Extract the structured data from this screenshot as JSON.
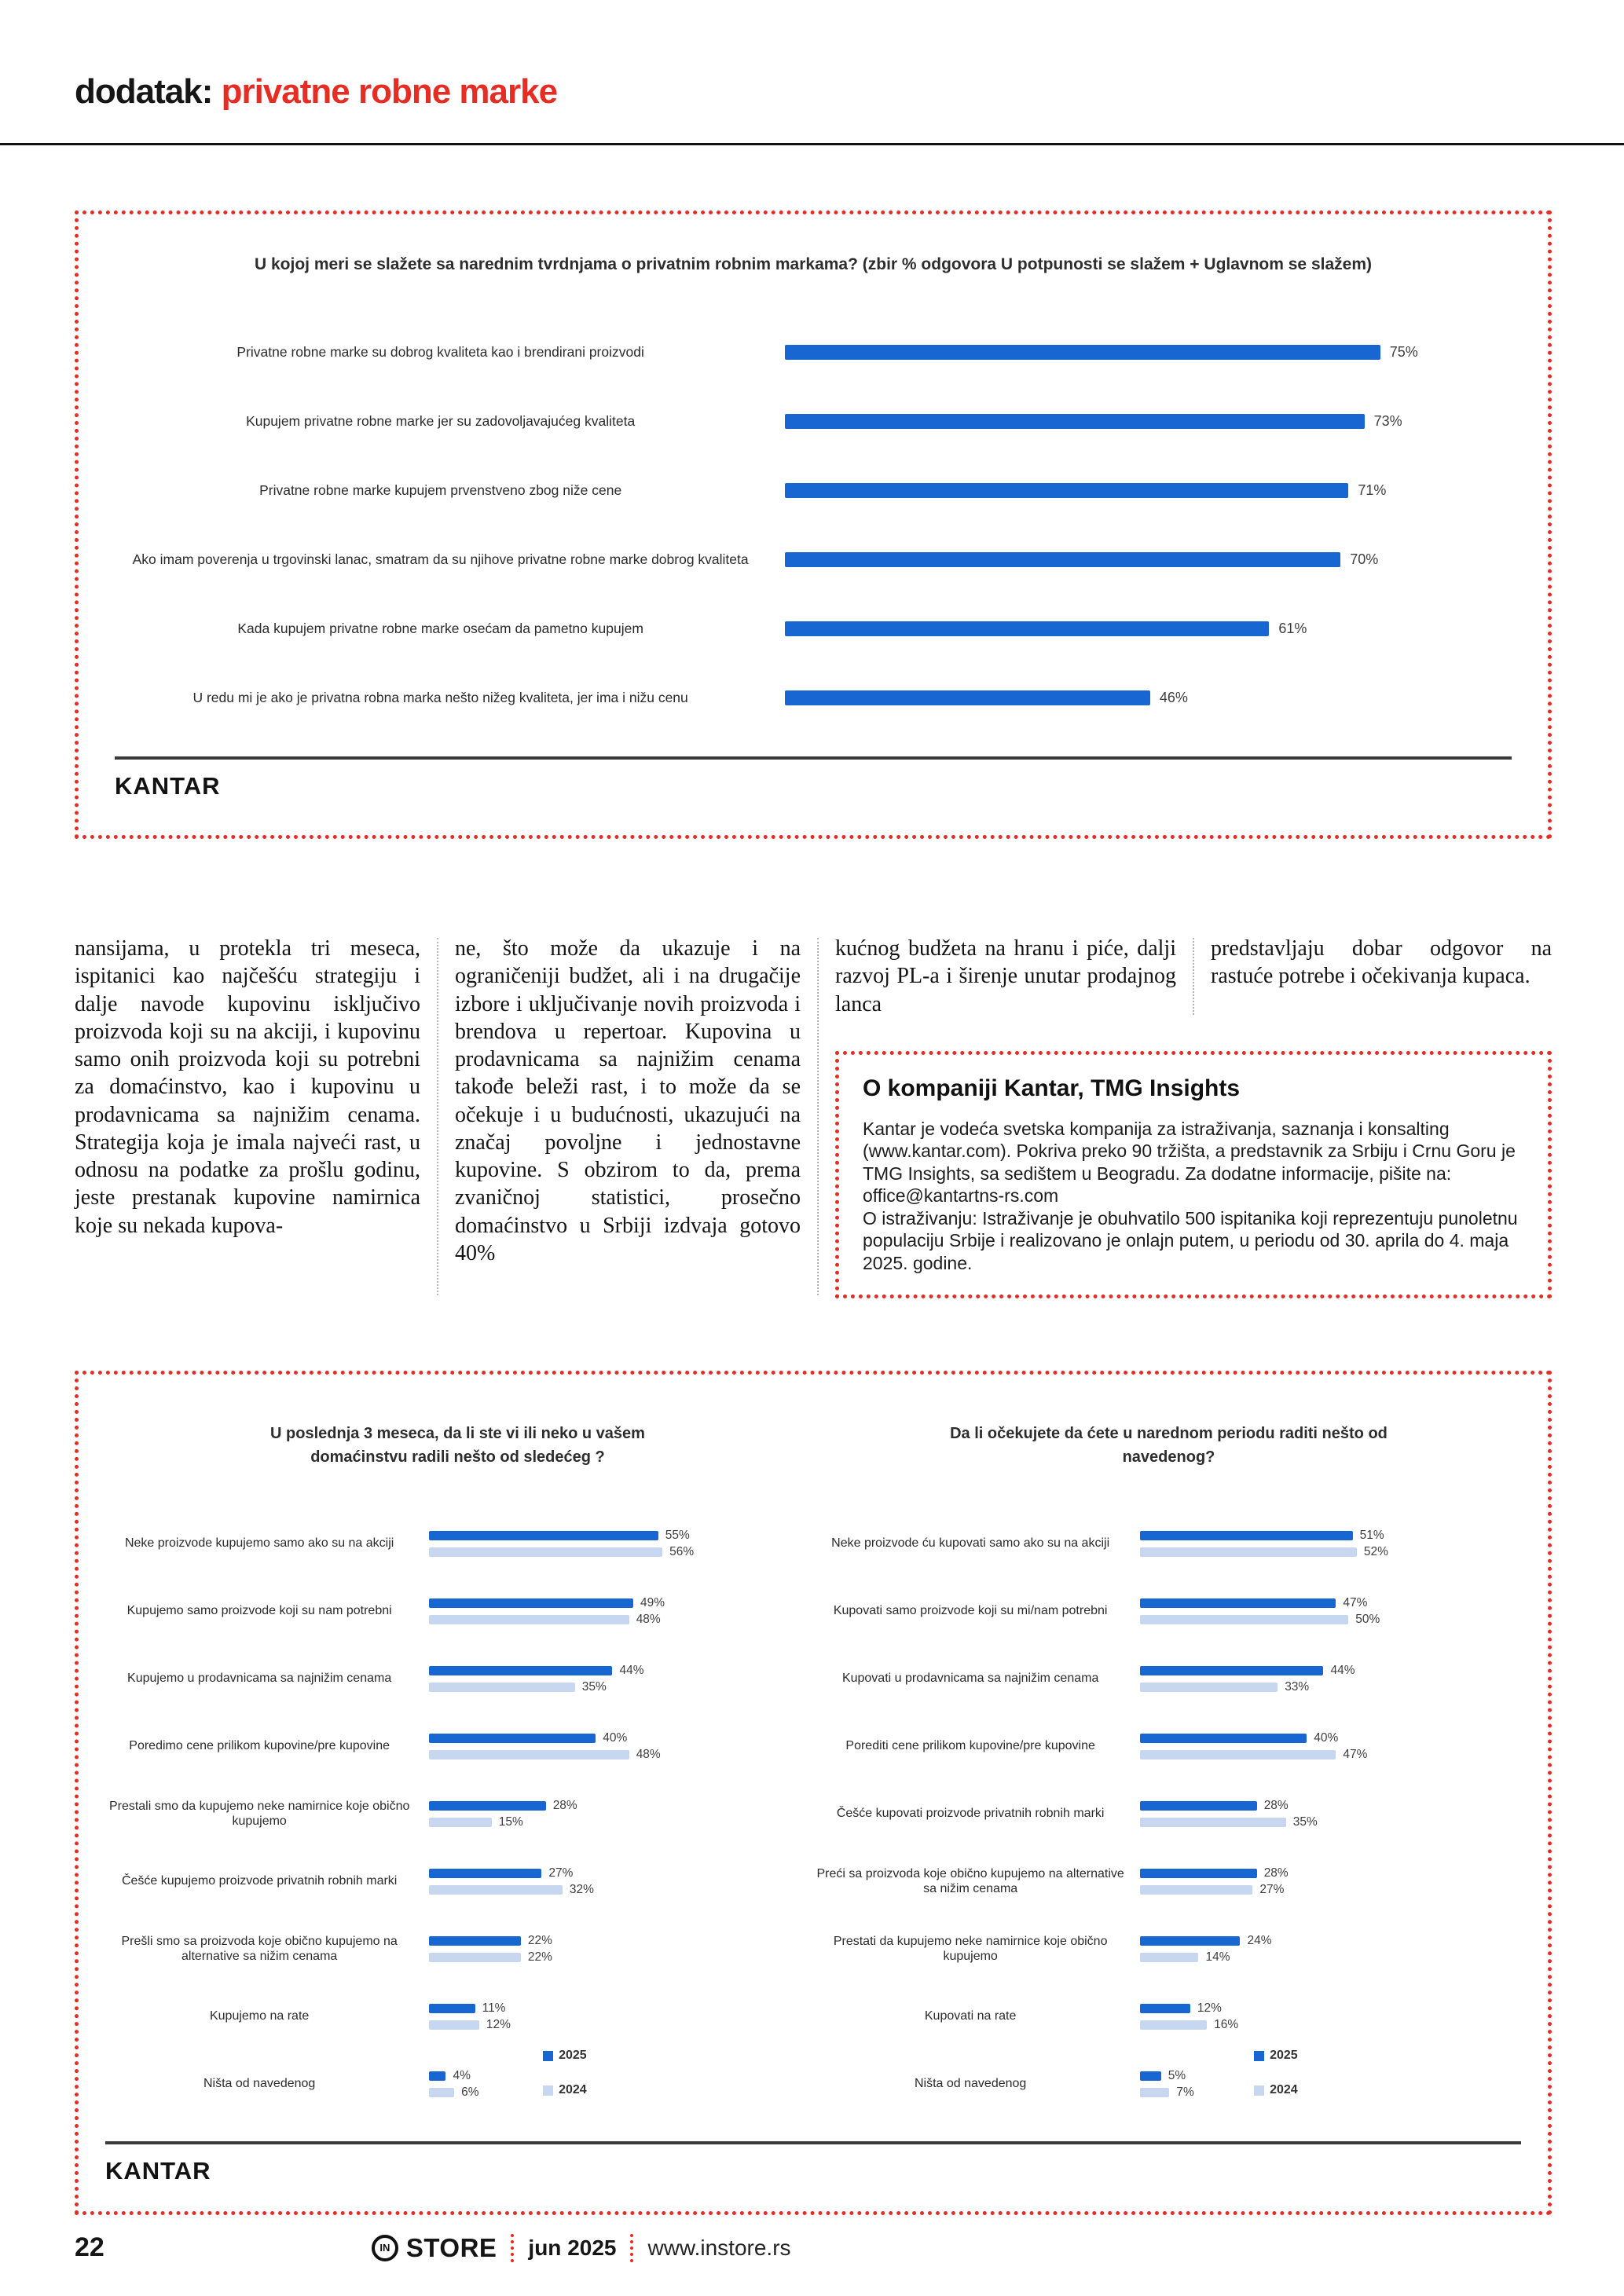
{
  "header": {
    "prefix": "dodatak: ",
    "title": "privatne robne marke"
  },
  "branding": {
    "kantar": "KANTAR"
  },
  "colors": {
    "accent_red": "#e62d24",
    "bar_blue": "#1766d1",
    "bar_lightblue": "#c7d7ef",
    "value_text": "#3e3e3e"
  },
  "article": {
    "columns": [
      "nansijama, u protekla tri meseca, ispitanici kao najčešću strategiju i dalje navode kupovinu isključivo proizvoda koji su na akciji, i kupovinu samo onih proizvoda koji su potrebni za domaćinstvo, kao i kupovinu u prodavnicama sa najnižim cenama. Strategija koja je imala najveći rast, u odnosu na podatke za prošlu godinu, jeste prestanak kupovine namirnica koje su nekada kupova-",
      "ne, što može da ukazuje i na ograničeniji budžet, ali i na drugačije izbore i uključivanje novih proizvoda i brendova u repertoar. Kupovina u prodavnicama sa najnižim cenama takođe beleži rast, i to može da se očekuje i u budućnosti, ukazujući na značaj povoljne i jednostavne kupovine. S obzirom to da, prema zvaničnoj statistici, prosečno domaćinstvo u Srbiji izdvaja gotovo 40%",
      "kućnog budžeta na hranu i piće, dalji razvoj PL-a i širenje unutar prodajnog lanca",
      "predstavljaju dobar odgovor na rastuće potrebe i očekivanja kupaca."
    ]
  },
  "about_box": {
    "heading": "O kompaniji Kantar, TMG Insights",
    "paragraph1": "Kantar je vodeća svetska kompanija za istraživanja, saznanja i konsalting (www.kantar.com). Pokriva preko 90 tržišta, a predstavnik za Srbiju i Crnu Goru je TMG Insights, sa sedištem u Beogradu. Za dodatne informacije, pišite na: office@kantartns-rs.com",
    "paragraph2": "O istraživanju: Istraživanje je obuhvatilo 500 ispitanika koji reprezentuju punoletnu populaciju Srbije i realizovano je onlajn putem, u periodu od 30. aprila do 4. maja 2025. godine."
  },
  "chart_data": [
    {
      "type": "bar",
      "orientation": "horizontal",
      "title": "U kojoj meri se slažete sa narednim tvrdnjama o privatnim robnim markama? (zbir % odgovora U potpunosti se slažem + Uglavnom se slažem)",
      "categories": [
        "Privatne robne marke su dobrog kvaliteta kao i brendirani proizvodi",
        "Kupujem privatne robne marke jer su zadovoljavajućeg kvaliteta",
        "Privatne robne marke kupujem prvenstveno zbog niže cene",
        "Ako imam poverenja u trgovinski lanac, smatram da su njihove privatne robne marke dobrog kvaliteta",
        "Kada kupujem privatne robne marke osećam da pametno kupujem",
        "U redu mi je ako je privatna robna marka nešto nižeg kvaliteta, jer ima i nižu cenu"
      ],
      "values": [
        75,
        73,
        71,
        70,
        61,
        46
      ],
      "unit": "%",
      "xlim": [
        0,
        100
      ],
      "grid": false,
      "source": "KANTAR"
    },
    {
      "type": "bar",
      "orientation": "horizontal",
      "title": "U poslednja 3 meseca, da li ste vi ili neko u vašem domaćinstvu radili nešto od sledećeg ?",
      "categories": [
        "Neke proizvode kupujemo samo ako su na akciji",
        "Kupujemo samo proizvode koji su nam potrebni",
        "Kupujemo u prodavnicama sa najnižim cenama",
        "Poredimo cene prilikom kupovine/pre kupovine",
        "Prestali smo da kupujemo neke namirnice koje obično kupujemo",
        "Češće kupujemo proizvode privatnih robnih marki",
        "Prešli smo sa proizvoda koje obično kupujemo na alternative sa nižim cenama",
        "Kupujemo na rate",
        "Ništa od navedenog"
      ],
      "series": [
        {
          "name": "2025",
          "values": [
            55,
            49,
            44,
            40,
            28,
            27,
            22,
            11,
            4
          ]
        },
        {
          "name": "2024",
          "values": [
            56,
            48,
            35,
            48,
            15,
            32,
            22,
            12,
            6
          ]
        }
      ],
      "unit": "%",
      "xlim": [
        0,
        100
      ],
      "grid": false,
      "legend_position": "bottom-right",
      "source": "KANTAR"
    },
    {
      "type": "bar",
      "orientation": "horizontal",
      "title": "Da li očekujete da ćete u narednom periodu raditi nešto od navedenog?",
      "categories": [
        "Neke proizvode ću kupovati samo ako su na akciji",
        "Kupovati samo proizvode koji su mi/nam potrebni",
        "Kupovati u prodavnicama sa najnižim cenama",
        "Porediti cene prilikom kupovine/pre kupovine",
        "Češće kupovati proizvode privatnih robnih marki",
        "Preći sa proizvoda koje obično kupujemo na alternative sa nižim cenama",
        "Prestati da kupujemo neke namirnice koje obično kupujemo",
        "Kupovati na rate",
        "Ništa od navedenog"
      ],
      "series": [
        {
          "name": "2025",
          "values": [
            51,
            47,
            44,
            40,
            28,
            28,
            24,
            12,
            5
          ]
        },
        {
          "name": "2024",
          "values": [
            52,
            50,
            33,
            47,
            35,
            27,
            14,
            16,
            7
          ]
        }
      ],
      "unit": "%",
      "xlim": [
        0,
        100
      ],
      "grid": false,
      "legend_position": "bottom-right",
      "source": "KANTAR"
    }
  ],
  "footer": {
    "page_number": "22",
    "logo_circle": "IN",
    "brand": "STORE",
    "issue": "jun 2025",
    "website": "www.instore.rs"
  }
}
